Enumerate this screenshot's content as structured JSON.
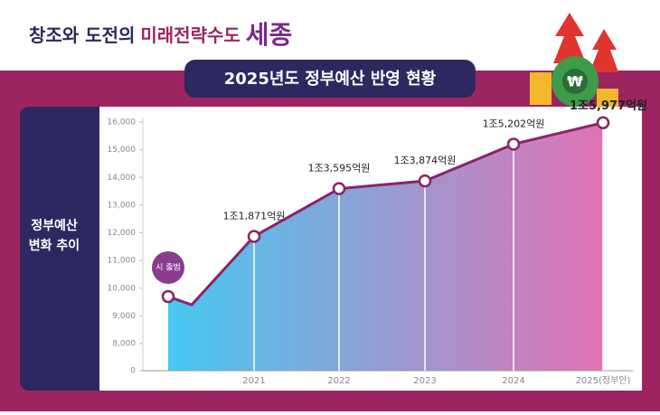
{
  "chart_data": {
    "type": "area-line",
    "title": [
      "창조와 도전의",
      "미래전략수도",
      "세종"
    ],
    "subtitle": "2025년도 정부예산 반영 현황",
    "side_label": [
      "정부예산",
      "변화 추이"
    ],
    "annotation": "시 출범",
    "categories": [
      null,
      null,
      "2021",
      "2022",
      "2023",
      "2024",
      "2025(정부안)"
    ],
    "values": [
      9700,
      9400,
      11871,
      13595,
      13874,
      15202,
      15977
    ],
    "value_labels": [
      null,
      null,
      "1조1,871억원",
      "1조3,595억원",
      "1조3,874억원",
      "1조5,202억원",
      "1조5,977억원"
    ],
    "ylim": [
      0,
      16000
    ],
    "axis_break": [
      0,
      8000
    ],
    "yticks": [
      {
        "value": 0,
        "label": "0"
      },
      {
        "value": 8000,
        "label": "8,000"
      },
      {
        "value": 9000,
        "label": "9,000"
      },
      {
        "value": 10000,
        "label": "10,000"
      },
      {
        "value": 11000,
        "label": "11,000"
      },
      {
        "value": 12000,
        "label": "12,000"
      },
      {
        "value": 13000,
        "label": "13,000"
      },
      {
        "value": 14000,
        "label": "14,000"
      },
      {
        "value": 15000,
        "label": "15,000"
      },
      {
        "value": 16000,
        "label": "16,000"
      }
    ],
    "color": "#8a2466",
    "fill_colors": [
      "#46c8f2",
      "#e272b4"
    ]
  }
}
